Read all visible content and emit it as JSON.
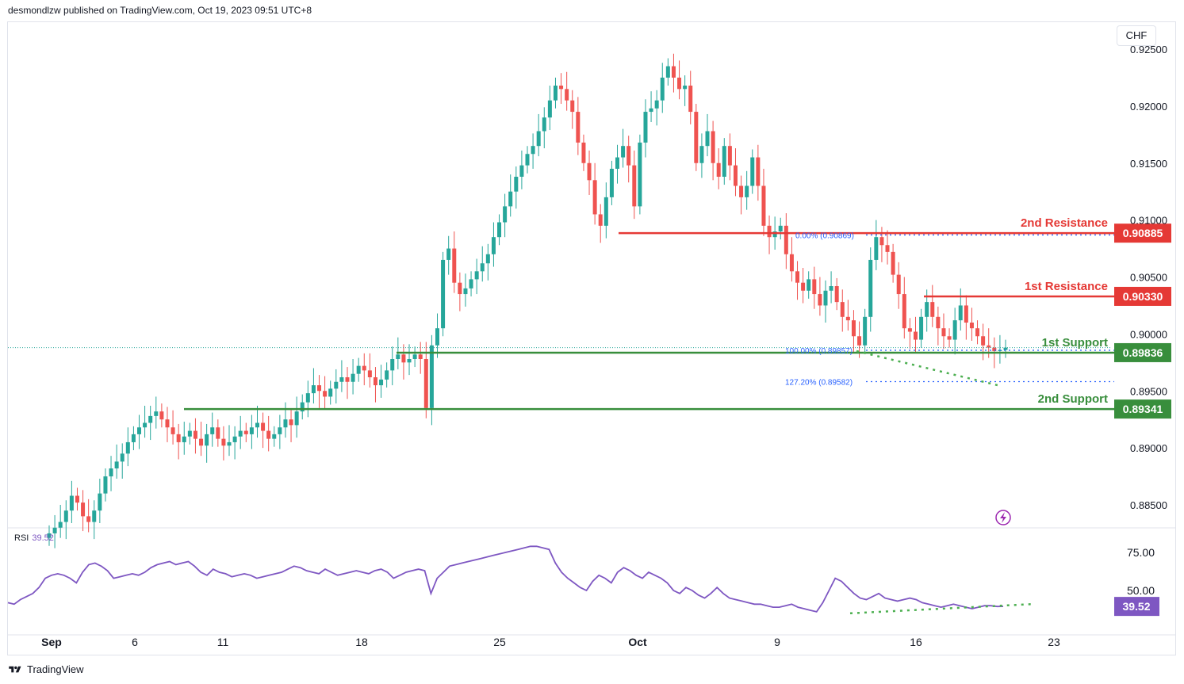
{
  "header": {
    "publisher": "desmondlzw published on TradingView.com, Oct 19, 2023 09:51 UTC+8"
  },
  "currency_button": "CHF",
  "rsi": {
    "label": "RSI",
    "value": "39.52"
  },
  "footer": {
    "brand": "TradingView"
  },
  "colors": {
    "up": "#26a69a",
    "down": "#ef5350",
    "resistance": "#e53935",
    "support": "#388e3c",
    "rsi": "#7e57c2",
    "fib": "#2962ff"
  },
  "chart_data": [
    {
      "type": "candlestick",
      "title": "",
      "y_axis": {
        "ticks": [
          "0.92500",
          "0.92000",
          "0.91500",
          "0.91000",
          "0.90500",
          "0.90000",
          "0.89500",
          "0.89000",
          "0.88500"
        ],
        "tick_values": [
          0.925,
          0.92,
          0.915,
          0.91,
          0.905,
          0.9,
          0.895,
          0.89,
          0.885
        ],
        "ylim": [
          0.8825,
          0.9265
        ]
      },
      "x_axis": {
        "ticks": [
          "Sep",
          "6",
          "11",
          "18",
          "25",
          "Oct",
          "9",
          "16",
          "23"
        ]
      },
      "close_series": [
        0.8825,
        0.883,
        0.8835,
        0.8845,
        0.8858,
        0.8852,
        0.884,
        0.8835,
        0.8845,
        0.886,
        0.8875,
        0.8882,
        0.8888,
        0.8895,
        0.8905,
        0.8912,
        0.8918,
        0.8922,
        0.8928,
        0.8932,
        0.8925,
        0.8918,
        0.8912,
        0.8905,
        0.891,
        0.8915,
        0.8908,
        0.8902,
        0.8912,
        0.8918,
        0.8908,
        0.8902,
        0.8905,
        0.891,
        0.8915,
        0.8912,
        0.8918,
        0.8922,
        0.8915,
        0.8908,
        0.8912,
        0.8918,
        0.8925,
        0.892,
        0.8932,
        0.894,
        0.8948,
        0.8955,
        0.895,
        0.8945,
        0.8952,
        0.8958,
        0.8962,
        0.8958,
        0.8965,
        0.8972,
        0.8968,
        0.8962,
        0.8955,
        0.896,
        0.8968,
        0.8978,
        0.8982,
        0.8975,
        0.8978,
        0.8982,
        0.8978,
        0.8935,
        0.899,
        0.9005,
        0.9065,
        0.9075,
        0.9045,
        0.9035,
        0.904,
        0.9048,
        0.9055,
        0.9062,
        0.907,
        0.9085,
        0.9098,
        0.9112,
        0.9125,
        0.9138,
        0.9148,
        0.9158,
        0.9165,
        0.9178,
        0.919,
        0.9205,
        0.9218,
        0.9215,
        0.9205,
        0.9195,
        0.9168,
        0.915,
        0.9135,
        0.9105,
        0.9095,
        0.912,
        0.9145,
        0.9155,
        0.9165,
        0.9148,
        0.9112,
        0.9168,
        0.9195,
        0.9198,
        0.9205,
        0.9225,
        0.9235,
        0.9225,
        0.9215,
        0.9218,
        0.9195,
        0.915,
        0.9165,
        0.9178,
        0.915,
        0.9138,
        0.9165,
        0.9148,
        0.913,
        0.912,
        0.913,
        0.9155,
        0.913,
        0.9095,
        0.9085,
        0.909,
        0.9095,
        0.907,
        0.9055,
        0.9045,
        0.9038,
        0.9048,
        0.9035,
        0.9025,
        0.9038,
        0.9042,
        0.9028,
        0.9015,
        0.9012,
        0.8998,
        0.899,
        0.9015,
        0.9065,
        0.9085,
        0.9078,
        0.9072,
        0.9052,
        0.9035,
        0.9005,
        0.9002,
        0.8995,
        0.9015,
        0.9028,
        0.9015,
        0.9005,
        0.8998,
        0.8995,
        0.9012,
        0.9025,
        0.901,
        0.9005,
        0.8998,
        0.899,
        0.8988,
        0.8985,
        0.8986,
        0.8988
      ],
      "horizontal_levels": [
        {
          "label": "2nd Resistance",
          "value": 0.90885,
          "text": "0.90885",
          "color": "#e53935"
        },
        {
          "label": "1st Resistance",
          "value": 0.9033,
          "text": "0.90330",
          "color": "#e53935"
        },
        {
          "label": "1st Support",
          "value": 0.89836,
          "text": "0.89836",
          "color": "#388e3c"
        },
        {
          "label": "2nd Support",
          "value": 0.89341,
          "text": "0.89341",
          "color": "#388e3c"
        }
      ],
      "fib_labels": [
        {
          "text": "0.00% (0.90869)",
          "value": 0.90869
        },
        {
          "text": "100.00% (0.89857)",
          "value": 0.89857
        },
        {
          "text": "127.20% (0.89582)",
          "value": 0.89582
        }
      ]
    },
    {
      "type": "line",
      "title": "RSI",
      "y_axis": {
        "ticks": [
          "75.00",
          "50.00"
        ],
        "tick_values": [
          75,
          50
        ],
        "ylim": [
          30,
          83
        ]
      },
      "last_value": 39.52,
      "values": [
        42,
        41,
        44,
        46,
        48,
        52,
        58,
        60,
        61,
        60,
        58,
        55,
        62,
        67,
        68,
        66,
        63,
        58,
        59,
        60,
        61,
        60,
        62,
        65,
        67,
        68,
        69,
        67,
        68,
        69,
        66,
        62,
        60,
        64,
        62,
        61,
        59,
        60,
        61,
        60,
        58,
        59,
        60,
        61,
        62,
        64,
        66,
        65,
        63,
        62,
        61,
        64,
        62,
        60,
        61,
        62,
        63,
        62,
        61,
        63,
        64,
        62,
        58,
        60,
        62,
        63,
        64,
        63,
        48,
        58,
        62,
        66,
        67,
        68,
        69,
        70,
        71,
        72,
        73,
        74,
        75,
        76,
        77,
        78,
        79,
        79,
        78,
        77,
        68,
        62,
        58,
        55,
        52,
        50,
        56,
        60,
        58,
        55,
        62,
        65,
        63,
        60,
        58,
        62,
        60,
        58,
        55,
        50,
        48,
        52,
        50,
        47,
        45,
        48,
        52,
        48,
        45,
        44,
        43,
        42,
        41,
        41,
        40,
        39,
        39,
        40,
        41,
        39,
        38,
        37,
        36,
        42,
        50,
        58,
        56,
        52,
        48,
        45,
        44,
        46,
        48,
        45,
        44,
        43,
        44,
        45,
        44,
        42,
        41,
        40,
        39,
        40,
        41,
        40,
        39,
        38,
        39,
        40,
        40,
        39.5,
        39.52
      ],
      "trendline": true
    }
  ]
}
